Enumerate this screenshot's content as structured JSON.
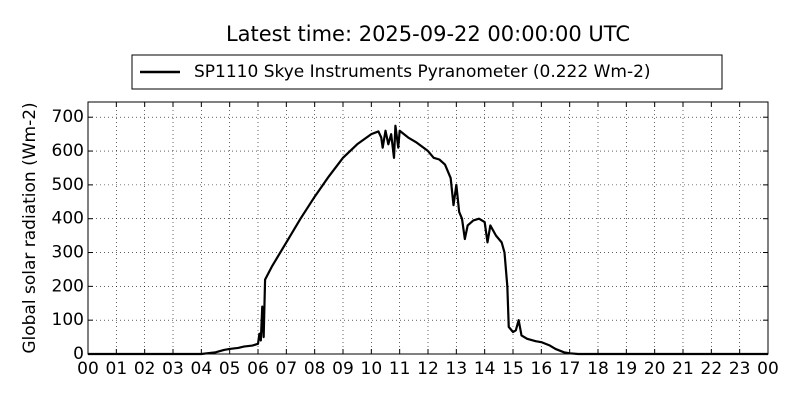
{
  "chart_data": {
    "type": "line",
    "title": "Latest time: 2025-09-22 00:00:00 UTC",
    "y_label": "Global solar radiation (Wm-2)",
    "x": [
      0,
      2,
      4.0,
      4.5,
      4.8,
      5.0,
      5.3,
      5.5,
      5.8,
      6.0,
      6.05,
      6.1,
      6.15,
      6.2,
      6.25,
      6.5,
      7.0,
      7.5,
      8.0,
      8.5,
      9.0,
      9.5,
      10.0,
      10.25,
      10.35,
      10.4,
      10.5,
      10.6,
      10.7,
      10.8,
      10.85,
      10.95,
      11.0,
      11.3,
      11.6,
      12.0,
      12.2,
      12.4,
      12.6,
      12.8,
      12.9,
      13.0,
      13.1,
      13.2,
      13.3,
      13.4,
      13.6,
      13.8,
      14.0,
      14.1,
      14.2,
      14.4,
      14.6,
      14.7,
      14.8,
      14.85,
      15.0,
      15.1,
      15.2,
      15.3,
      15.5,
      15.8,
      16.0,
      16.3,
      16.5,
      16.8,
      17.0,
      17.3,
      24
    ],
    "series": [
      {
        "name": "SP1110 Skye Instruments Pyranometer (0.222 Wm-2)",
        "color": "#000000",
        "values": [
          0,
          0,
          0,
          5,
          12,
          15,
          18,
          22,
          25,
          30,
          60,
          40,
          140,
          50,
          220,
          260,
          330,
          400,
          465,
          525,
          580,
          620,
          650,
          658,
          640,
          610,
          660,
          620,
          650,
          580,
          675,
          610,
          660,
          640,
          625,
          600,
          580,
          575,
          560,
          520,
          440,
          500,
          420,
          400,
          340,
          380,
          395,
          400,
          390,
          330,
          380,
          350,
          330,
          300,
          200,
          80,
          65,
          70,
          100,
          55,
          45,
          38,
          35,
          25,
          15,
          5,
          2,
          0,
          0
        ]
      }
    ],
    "xlim": [
      0,
      24
    ],
    "xticks": [
      {
        "value": 0,
        "label": "00"
      },
      {
        "value": 1,
        "label": "01"
      },
      {
        "value": 2,
        "label": "02"
      },
      {
        "value": 3,
        "label": "03"
      },
      {
        "value": 4,
        "label": "04"
      },
      {
        "value": 5,
        "label": "05"
      },
      {
        "value": 6,
        "label": "06"
      },
      {
        "value": 7,
        "label": "07"
      },
      {
        "value": 8,
        "label": "08"
      },
      {
        "value": 9,
        "label": "09"
      },
      10,
      11,
      12,
      13,
      14,
      15,
      16,
      17,
      18,
      19,
      20,
      21,
      22,
      23,
      {
        "value": 24,
        "label": "00"
      }
    ],
    "ylim": [
      0,
      745
    ],
    "yticks": [
      0,
      100,
      200,
      300,
      400,
      500,
      600,
      700
    ],
    "grid": true,
    "legend": "upper-center"
  }
}
